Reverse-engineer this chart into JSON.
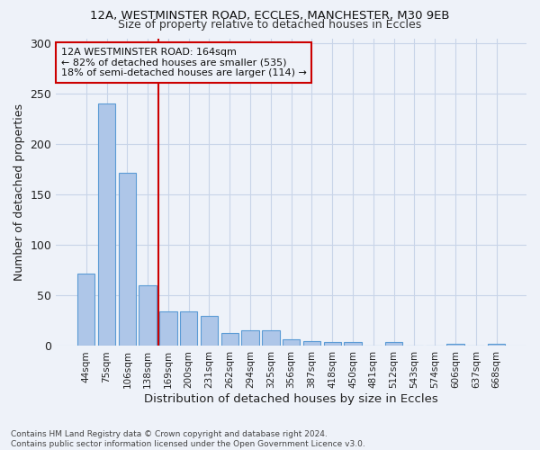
{
  "title_line1": "12A, WESTMINSTER ROAD, ECCLES, MANCHESTER, M30 9EB",
  "title_line2": "Size of property relative to detached houses in Eccles",
  "xlabel": "Distribution of detached houses by size in Eccles",
  "ylabel": "Number of detached properties",
  "categories": [
    "44sqm",
    "75sqm",
    "106sqm",
    "138sqm",
    "169sqm",
    "200sqm",
    "231sqm",
    "262sqm",
    "294sqm",
    "325sqm",
    "356sqm",
    "387sqm",
    "418sqm",
    "450sqm",
    "481sqm",
    "512sqm",
    "543sqm",
    "574sqm",
    "606sqm",
    "637sqm",
    "668sqm"
  ],
  "values": [
    72,
    240,
    172,
    60,
    34,
    34,
    30,
    13,
    16,
    16,
    7,
    5,
    4,
    4,
    0,
    4,
    0,
    0,
    2,
    0,
    2
  ],
  "bar_color": "#aec6e8",
  "bar_edge_color": "#5b9bd5",
  "grid_color": "#c8d4e8",
  "ref_line_x": 3.5,
  "ref_line_color": "#cc0000",
  "annotation_text": "12A WESTMINSTER ROAD: 164sqm\n← 82% of detached houses are smaller (535)\n18% of semi-detached houses are larger (114) →",
  "footer_text": "Contains HM Land Registry data © Crown copyright and database right 2024.\nContains public sector information licensed under the Open Government Licence v3.0.",
  "ylim": [
    0,
    305
  ],
  "yticks": [
    0,
    50,
    100,
    150,
    200,
    250,
    300
  ],
  "figsize": [
    6.0,
    5.0
  ],
  "dpi": 100,
  "bg_color": "#eef2f9"
}
